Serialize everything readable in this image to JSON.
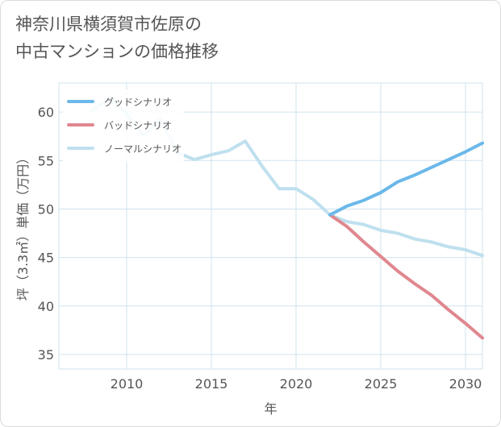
{
  "title": {
    "line1": "神奈川県横須賀市佐原の",
    "line2": "中古マンションの価格推移"
  },
  "chart_data": {
    "type": "line",
    "xlabel": "年",
    "ylabel": "坪（3.3㎡）単価（万円）",
    "xlim": [
      2006,
      2031
    ],
    "ylim": [
      33.5,
      63
    ],
    "xticks": [
      2010,
      2015,
      2020,
      2025,
      2030
    ],
    "yticks": [
      35,
      40,
      45,
      50,
      55,
      60
    ],
    "grid": true,
    "legend_position": "top-left",
    "series": [
      {
        "name": "グッドシナリオ",
        "color": "#6bb8ea",
        "x": [
          2022,
          2023,
          2024,
          2025,
          2026,
          2027,
          2028,
          2029,
          2030,
          2031
        ],
        "y": [
          49.4,
          50.3,
          50.9,
          51.7,
          52.8,
          53.5,
          54.3,
          55.1,
          55.9,
          56.8
        ]
      },
      {
        "name": "バッドシナリオ",
        "color": "#e0878f",
        "x": [
          2022,
          2023,
          2024,
          2025,
          2026,
          2027,
          2028,
          2029,
          2030,
          2031
        ],
        "y": [
          49.4,
          48.2,
          46.6,
          45.1,
          43.6,
          42.3,
          41.1,
          39.6,
          38.2,
          36.7
        ]
      },
      {
        "name": "ノーマルシナリオ",
        "color": "#bfe0ee",
        "x": [
          2008,
          2009,
          2010,
          2011,
          2012,
          2013,
          2014,
          2015,
          2016,
          2017,
          2018,
          2019,
          2020,
          2021,
          2022,
          2023,
          2024,
          2025,
          2026,
          2027,
          2028,
          2029,
          2030,
          2031
        ],
        "y": [
          60.2,
          61.5,
          59.8,
          57.6,
          59.3,
          55.8,
          55.1,
          55.6,
          56.0,
          57.0,
          54.4,
          52.1,
          52.1,
          51.0,
          49.4,
          48.7,
          48.4,
          47.8,
          47.5,
          46.9,
          46.6,
          46.1,
          45.8,
          45.2
        ]
      }
    ]
  }
}
